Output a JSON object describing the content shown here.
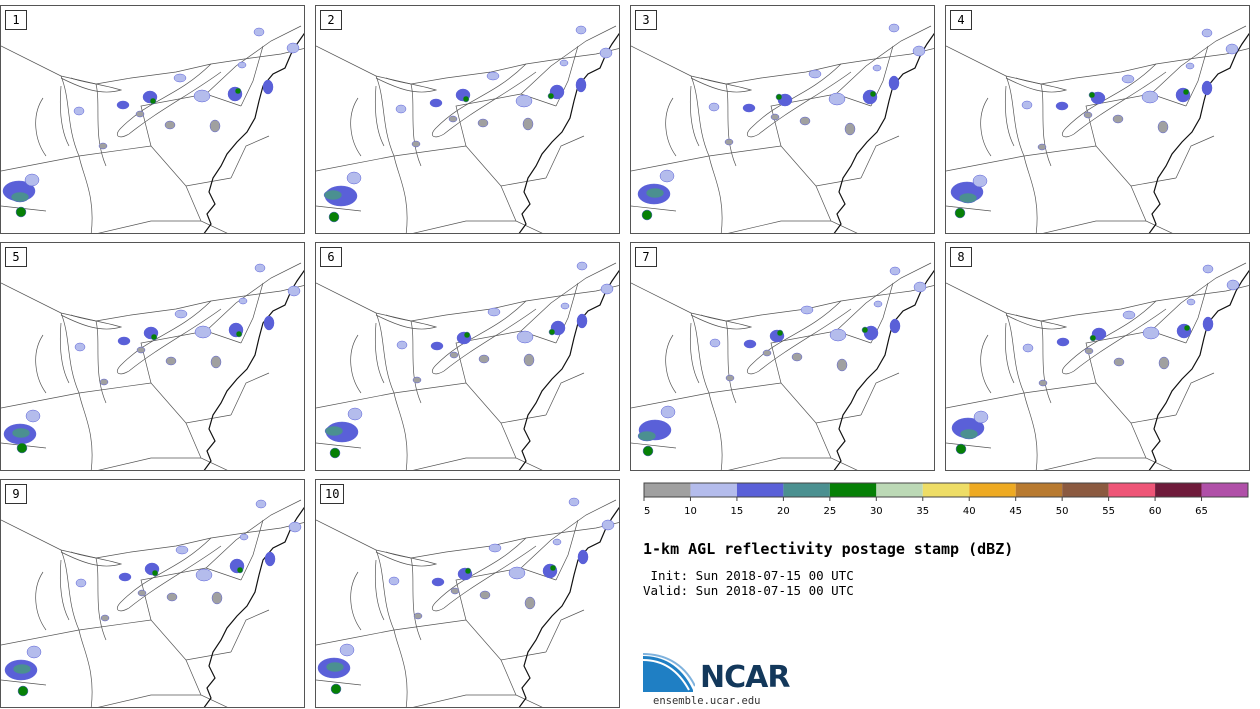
{
  "members": [
    "1",
    "2",
    "3",
    "4",
    "5",
    "6",
    "7",
    "8",
    "9",
    "10"
  ],
  "colorbar": {
    "colors": [
      "#a0a0a0",
      "#b4bcec",
      "#5a60d8",
      "#4b9090",
      "#068006",
      "#bcd9b6",
      "#eedd66",
      "#eeaa22",
      "#b87a30",
      "#8b5a40",
      "#ee5577",
      "#6e1a3a",
      "#b050a8"
    ],
    "ticks": [
      "5",
      "10",
      "15",
      "20",
      "25",
      "30",
      "35",
      "40",
      "45",
      "50",
      "55",
      "60",
      "65"
    ]
  },
  "title": "1-km AGL reflectivity postage stamp (dBZ)",
  "init_text": " Init: Sun 2018-07-15 00 UTC",
  "valid_text": "Valid: Sun 2018-07-15 00 UTC",
  "logo": {
    "name": "NCAR",
    "brand_color": "#13385b",
    "accent": "#1f7fc4"
  },
  "site": "ensemble.ucar.edu"
}
